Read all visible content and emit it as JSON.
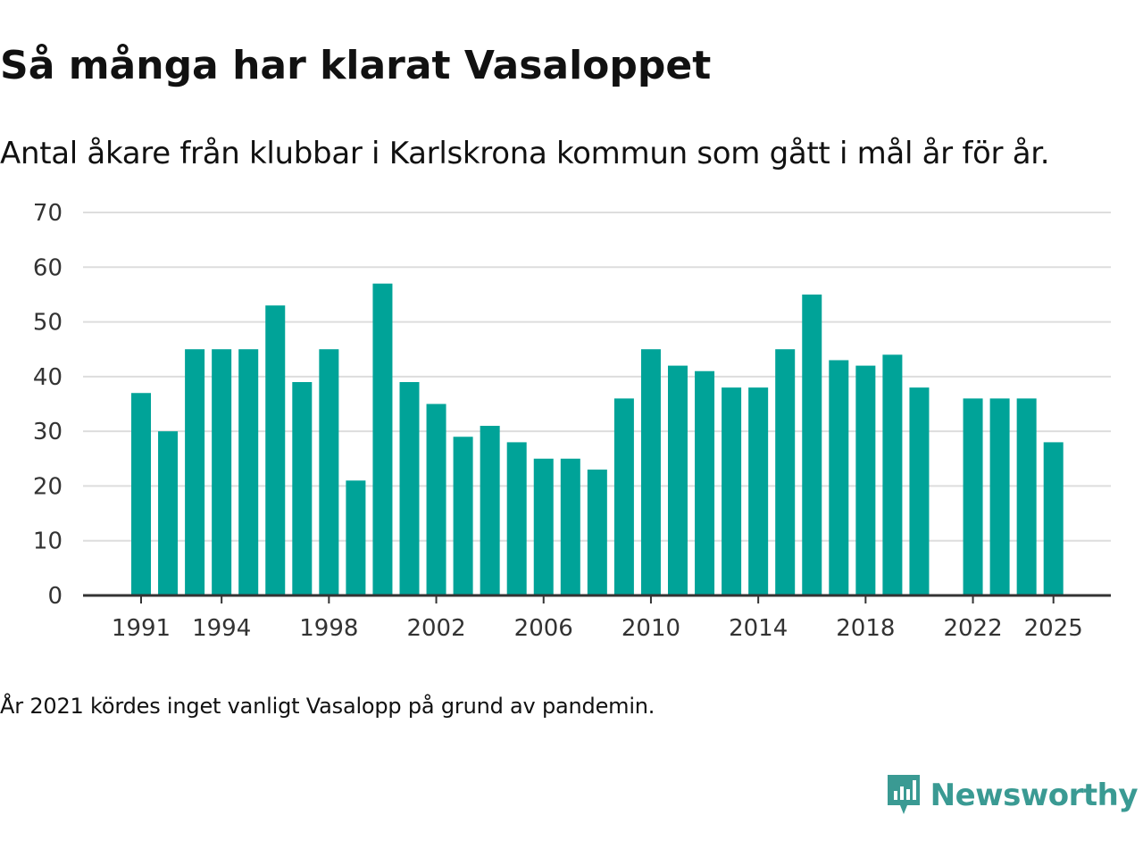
{
  "title": "Så många har klarat Vasaloppet",
  "subtitle": "Antal åkare från klubbar i Karlskrona kommun som gått i mål år för år.",
  "footnote": "År 2021 kördes inget vanligt Vasalopp på grund av pandemin.",
  "brand": {
    "name": "Newsworthy",
    "icon": "newsworthy-logo-icon",
    "color": "#3a9a93"
  },
  "colors": {
    "bar": "#00a398",
    "grid": "#dddddd",
    "axis": "#333333"
  },
  "chart_data": {
    "type": "bar",
    "title": "Så många har klarat Vasaloppet",
    "xlabel": "",
    "ylabel": "",
    "ylim": [
      0,
      70
    ],
    "yticks": [
      0,
      10,
      20,
      30,
      40,
      50,
      60,
      70
    ],
    "xticks": [
      1991,
      1994,
      1998,
      2002,
      2006,
      2010,
      2014,
      2018,
      2022,
      2025
    ],
    "grid": true,
    "legend": "none",
    "categories": [
      1991,
      1992,
      1993,
      1994,
      1995,
      1996,
      1997,
      1998,
      1999,
      2000,
      2001,
      2002,
      2003,
      2004,
      2005,
      2006,
      2007,
      2008,
      2009,
      2010,
      2011,
      2012,
      2013,
      2014,
      2015,
      2016,
      2017,
      2018,
      2019,
      2020,
      2021,
      2022,
      2023,
      2024,
      2025
    ],
    "values": [
      37,
      30,
      45,
      45,
      45,
      53,
      39,
      45,
      21,
      57,
      39,
      35,
      29,
      31,
      28,
      25,
      25,
      23,
      36,
      45,
      42,
      41,
      38,
      38,
      45,
      55,
      43,
      42,
      44,
      38,
      null,
      36,
      36,
      36,
      28
    ]
  }
}
